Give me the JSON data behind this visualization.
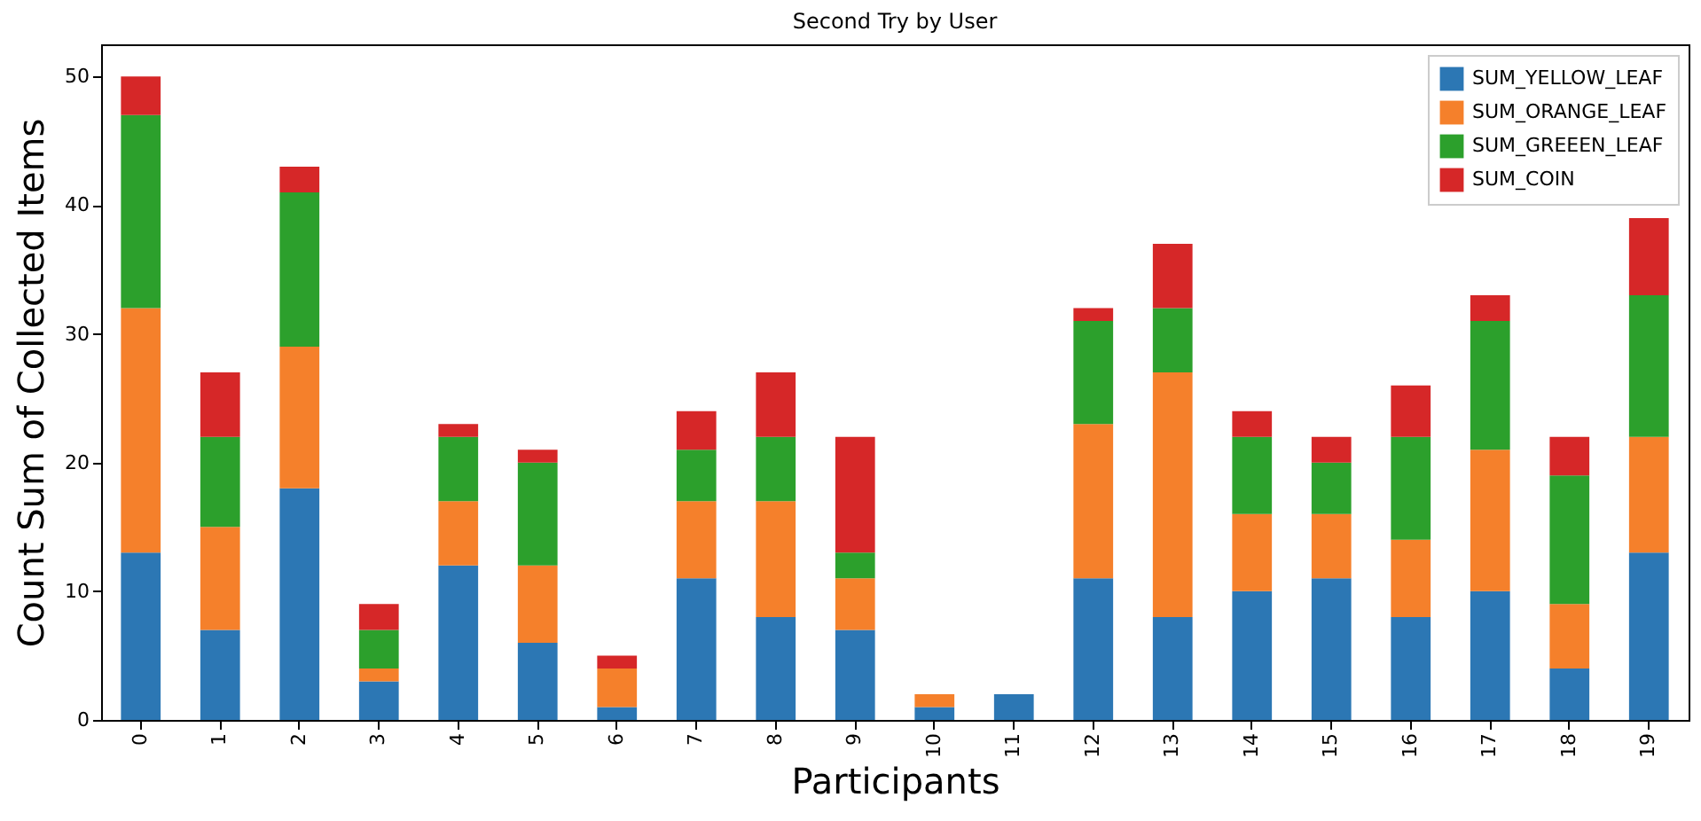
{
  "chart_data": {
    "type": "bar",
    "title": "Second Try by User",
    "xlabel": "Participants",
    "ylabel": "Count Sum of Collected Items",
    "stacked": true,
    "categories": [
      "0",
      "1",
      "2",
      "3",
      "4",
      "5",
      "6",
      "7",
      "8",
      "9",
      "10",
      "11",
      "12",
      "13",
      "14",
      "15",
      "16",
      "17",
      "18",
      "19"
    ],
    "series": [
      {
        "name": "SUM_YELLOW_LEAF",
        "color": "#2c77b4",
        "values": [
          13,
          7,
          18,
          3,
          12,
          6,
          1,
          11,
          8,
          7,
          1,
          2,
          11,
          8,
          10,
          11,
          8,
          10,
          4,
          13
        ]
      },
      {
        "name": "SUM_ORANGE_LEAF",
        "color": "#f5802b",
        "values": [
          19,
          8,
          11,
          1,
          5,
          6,
          3,
          6,
          9,
          4,
          1,
          0,
          12,
          19,
          6,
          5,
          6,
          11,
          5,
          9
        ]
      },
      {
        "name": "SUM_GREEEN_LEAF",
        "color": "#2ca02c",
        "values": [
          15,
          7,
          12,
          3,
          5,
          8,
          0,
          4,
          5,
          2,
          0,
          0,
          8,
          5,
          6,
          4,
          8,
          10,
          10,
          11
        ]
      },
      {
        "name": "SUM_COIN",
        "color": "#d62728",
        "values": [
          3,
          5,
          2,
          2,
          1,
          1,
          1,
          3,
          5,
          9,
          0,
          0,
          1,
          5,
          2,
          2,
          4,
          2,
          3,
          6
        ]
      }
    ],
    "ylim": [
      0,
      52.5
    ],
    "yticks": [
      0,
      10,
      20,
      30,
      40,
      50
    ],
    "grid": false,
    "legend": "top right"
  }
}
